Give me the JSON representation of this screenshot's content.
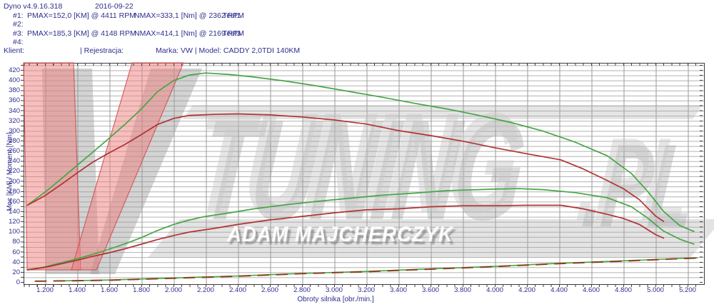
{
  "header": {
    "app_version": "Dyno v4.9.16.318",
    "date": "2016-09-22",
    "runs": [
      {
        "no": "#1:",
        "pmax": "PMAX=152,0 [KM] @ 4411 RPM",
        "nmax": "NMAX=333,1 [Nm] @ 2362 RPM",
        "test": "Test1"
      },
      {
        "no": "#2:",
        "pmax": "",
        "nmax": "",
        "test": ""
      },
      {
        "no": "#3:",
        "pmax": "PMAX=185,3 [KM] @ 4148 RPM",
        "nmax": "NMAX=414,1 [Nm] @ 2169 RPM",
        "test": "Test3"
      },
      {
        "no": "#4:",
        "pmax": "",
        "nmax": "",
        "test": ""
      }
    ],
    "client_label": "Klient:",
    "registration_label": "| Rejestracja:",
    "vehicle_info": "Marka: VW | Model: CADDY 2,0TDI 140KM"
  },
  "watermark": {
    "letter": "V",
    "brand": "TUNING",
    "tld": ".PL",
    "author": "ADAM MAJCHERCZYK",
    "pink": "#ef7a7a",
    "gray": "#a8a8a8"
  },
  "colors": {
    "header_text": "#2e2e8e",
    "grid_horizontal": "#b3b3b3",
    "grid_vertical": "#999999",
    "plot_border": "#3c3c3c",
    "series_green": "#45a645",
    "series_red": "#b23333",
    "loss_dash": "#8a431c"
  },
  "chart_data": {
    "type": "line",
    "title": "",
    "xlabel": "Obroty silnika [obr./min.]",
    "ylabel": "Moc [KM] / Moment [Nm]",
    "xlim": [
      1067,
      5300
    ],
    "ylim": [
      0,
      434
    ],
    "grid": {
      "on": true,
      "x_step": 200,
      "y_step": 10
    },
    "x_ticks": [
      {
        "value": 1200,
        "label": "1.200"
      },
      {
        "value": 1400,
        "label": "1.400"
      },
      {
        "value": 1600,
        "label": "1.600"
      },
      {
        "value": 1800,
        "label": "1.800"
      },
      {
        "value": 2000,
        "label": "2.000"
      },
      {
        "value": 2200,
        "label": "2.200"
      },
      {
        "value": 2400,
        "label": "2.400"
      },
      {
        "value": 2600,
        "label": "2.600"
      },
      {
        "value": 2800,
        "label": "2.800"
      },
      {
        "value": 3000,
        "label": "3.000"
      },
      {
        "value": 3200,
        "label": "3.200"
      },
      {
        "value": 3400,
        "label": "3.400"
      },
      {
        "value": 3600,
        "label": "3.600"
      },
      {
        "value": 3800,
        "label": "3.800"
      },
      {
        "value": 4000,
        "label": "4.000"
      },
      {
        "value": 4200,
        "label": "4.200"
      },
      {
        "value": 4400,
        "label": "4.400"
      },
      {
        "value": 4600,
        "label": "4.600"
      },
      {
        "value": 4800,
        "label": "4.800"
      },
      {
        "value": 5000,
        "label": "5.000"
      },
      {
        "value": 5200,
        "label": "5.200"
      }
    ],
    "y_ticks": {
      "start": 0,
      "step": 20,
      "end": 420
    },
    "legend": "none",
    "series": [
      {
        "name": "torque_test3",
        "unit": "Nm",
        "color": "#45a645",
        "dash": null,
        "width": 1.7,
        "points": [
          [
            1090,
            152
          ],
          [
            1200,
            178
          ],
          [
            1300,
            204
          ],
          [
            1400,
            231
          ],
          [
            1500,
            258
          ],
          [
            1600,
            285
          ],
          [
            1700,
            313
          ],
          [
            1800,
            343
          ],
          [
            1900,
            377
          ],
          [
            2000,
            399
          ],
          [
            2100,
            410
          ],
          [
            2200,
            414
          ],
          [
            2350,
            411
          ],
          [
            2500,
            406
          ],
          [
            2700,
            398
          ],
          [
            2900,
            388
          ],
          [
            3100,
            377
          ],
          [
            3300,
            366
          ],
          [
            3500,
            354
          ],
          [
            3700,
            343
          ],
          [
            3900,
            330
          ],
          [
            4100,
            316
          ],
          [
            4300,
            299
          ],
          [
            4500,
            277
          ],
          [
            4700,
            250
          ],
          [
            4850,
            215
          ],
          [
            4950,
            180
          ],
          [
            5050,
            140
          ],
          [
            5150,
            112
          ],
          [
            5240,
            100
          ]
        ]
      },
      {
        "name": "torque_test1",
        "unit": "Nm",
        "color": "#b23333",
        "dash": null,
        "width": 1.7,
        "points": [
          [
            1090,
            152
          ],
          [
            1200,
            171
          ],
          [
            1300,
            193
          ],
          [
            1400,
            216
          ],
          [
            1500,
            238
          ],
          [
            1600,
            256
          ],
          [
            1700,
            273
          ],
          [
            1800,
            292
          ],
          [
            1900,
            312
          ],
          [
            2000,
            324
          ],
          [
            2100,
            330
          ],
          [
            2250,
            332
          ],
          [
            2400,
            333
          ],
          [
            2600,
            331
          ],
          [
            2800,
            327
          ],
          [
            3000,
            321
          ],
          [
            3200,
            313
          ],
          [
            3400,
            300
          ],
          [
            3600,
            290
          ],
          [
            3800,
            279
          ],
          [
            4000,
            266
          ],
          [
            4200,
            254
          ],
          [
            4411,
            242
          ],
          [
            4550,
            224
          ],
          [
            4700,
            201
          ],
          [
            4800,
            185
          ],
          [
            4900,
            163
          ],
          [
            5000,
            131
          ],
          [
            5050,
            120
          ]
        ]
      },
      {
        "name": "power_test3",
        "unit": "KM",
        "color": "#45a645",
        "dash": null,
        "width": 1.7,
        "points": [
          [
            1090,
            24
          ],
          [
            1200,
            30
          ],
          [
            1300,
            38
          ],
          [
            1400,
            46
          ],
          [
            1500,
            55
          ],
          [
            1600,
            65
          ],
          [
            1700,
            76
          ],
          [
            1800,
            88
          ],
          [
            1900,
            102
          ],
          [
            2000,
            114
          ],
          [
            2100,
            123
          ],
          [
            2200,
            130
          ],
          [
            2350,
            137
          ],
          [
            2500,
            145
          ],
          [
            2700,
            153
          ],
          [
            2900,
            160
          ],
          [
            3100,
            166
          ],
          [
            3300,
            172
          ],
          [
            3500,
            176
          ],
          [
            3700,
            181
          ],
          [
            3900,
            183
          ],
          [
            4000,
            184
          ],
          [
            4148,
            185
          ],
          [
            4300,
            183
          ],
          [
            4500,
            177
          ],
          [
            4700,
            167
          ],
          [
            4850,
            149
          ],
          [
            4950,
            127
          ],
          [
            5050,
            101
          ],
          [
            5150,
            85
          ],
          [
            5240,
            75
          ]
        ]
      },
      {
        "name": "power_test1",
        "unit": "KM",
        "color": "#b23333",
        "dash": null,
        "width": 1.7,
        "points": [
          [
            1090,
            24
          ],
          [
            1200,
            29
          ],
          [
            1300,
            36
          ],
          [
            1400,
            43
          ],
          [
            1500,
            51
          ],
          [
            1600,
            58
          ],
          [
            1700,
            66
          ],
          [
            1800,
            75
          ],
          [
            1900,
            84
          ],
          [
            2000,
            92
          ],
          [
            2100,
            99
          ],
          [
            2250,
            106
          ],
          [
            2400,
            114
          ],
          [
            2600,
            123
          ],
          [
            2800,
            130
          ],
          [
            3000,
            137
          ],
          [
            3200,
            143
          ],
          [
            3400,
            145
          ],
          [
            3600,
            149
          ],
          [
            3800,
            151
          ],
          [
            4000,
            151
          ],
          [
            4200,
            152
          ],
          [
            4411,
            152
          ],
          [
            4550,
            145
          ],
          [
            4700,
            134
          ],
          [
            4800,
            126
          ],
          [
            4900,
            114
          ],
          [
            5000,
            94
          ],
          [
            5050,
            87
          ]
        ]
      },
      {
        "name": "loss_power_green",
        "unit": "KM",
        "color": "#45a645",
        "dash": null,
        "width": 1.6,
        "points": [
          [
            1260,
            2
          ],
          [
            1600,
            4
          ],
          [
            2000,
            8
          ],
          [
            2400,
            12
          ],
          [
            2800,
            17
          ],
          [
            3200,
            21
          ],
          [
            3600,
            26
          ],
          [
            4000,
            31
          ],
          [
            4400,
            37
          ],
          [
            4800,
            42
          ],
          [
            5100,
            46
          ],
          [
            5260,
            48
          ]
        ]
      },
      {
        "name": "loss_power_dashed",
        "unit": "KM",
        "color": "#8a431c",
        "dash": "15 11",
        "width": 2,
        "points": [
          [
            1140,
            1.5
          ],
          [
            1600,
            3.5
          ],
          [
            2000,
            7.5
          ],
          [
            2400,
            11.5
          ],
          [
            2800,
            16.5
          ],
          [
            3200,
            20.5
          ],
          [
            3600,
            25.5
          ],
          [
            4000,
            30.5
          ],
          [
            4400,
            36.5
          ],
          [
            4800,
            41.5
          ],
          [
            5100,
            45.5
          ],
          [
            5260,
            47.5
          ]
        ]
      }
    ]
  }
}
